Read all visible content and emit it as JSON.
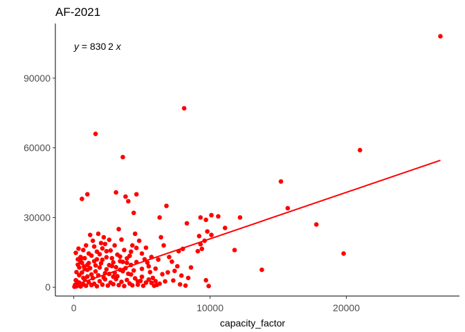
{
  "chart_data": {
    "type": "scatter",
    "title": "AF-2021",
    "xlabel": "capacity_factor",
    "ylabel": "",
    "xlim": [
      -1350,
      28300
    ],
    "ylim": [
      -3800,
      113500
    ],
    "x_ticks": [
      0,
      10000,
      20000
    ],
    "x_tick_labels": [
      "0",
      "10000",
      "20000"
    ],
    "y_ticks": [
      0,
      30000,
      60000,
      90000
    ],
    "y_tick_labels": [
      "0",
      "30000",
      "60000",
      "90000"
    ],
    "annotation": {
      "equation_prefix": "y",
      "equation_rest": " = 830 2 ",
      "equation_var": "x"
    },
    "fit_line": {
      "intercept": 830,
      "slope": 2,
      "x_start": 0,
      "x_end": 26900
    },
    "point_color": "#ff0000",
    "line_color": "#ff0000",
    "grid": false,
    "points": [
      [
        26900,
        108000
      ],
      [
        8100,
        77000
      ],
      [
        1600,
        66000
      ],
      [
        21000,
        59000
      ],
      [
        3600,
        56000
      ],
      [
        15200,
        45500
      ],
      [
        3100,
        40800
      ],
      [
        1000,
        40000
      ],
      [
        4600,
        40000
      ],
      [
        3800,
        39000
      ],
      [
        600,
        38000
      ],
      [
        4000,
        37000
      ],
      [
        6800,
        35000
      ],
      [
        15700,
        34000
      ],
      [
        4400,
        32000
      ],
      [
        10100,
        31000
      ],
      [
        10600,
        30500
      ],
      [
        9300,
        30000
      ],
      [
        9700,
        29000
      ],
      [
        6300,
        30000
      ],
      [
        11100,
        25500
      ],
      [
        12200,
        30000
      ],
      [
        8300,
        27500
      ],
      [
        17800,
        27000
      ],
      [
        9800,
        24000
      ],
      [
        10100,
        22500
      ],
      [
        9200,
        22000
      ],
      [
        9600,
        20000
      ],
      [
        9300,
        18500
      ],
      [
        9400,
        16500
      ],
      [
        9100,
        15500
      ],
      [
        11800,
        16000
      ],
      [
        19800,
        14500
      ],
      [
        13800,
        7500
      ],
      [
        9700,
        3000
      ],
      [
        9900,
        500
      ],
      [
        8600,
        8500
      ],
      [
        8400,
        4000
      ],
      [
        7600,
        9000
      ],
      [
        7200,
        11000
      ],
      [
        7000,
        13000
      ],
      [
        6600,
        18000
      ],
      [
        6400,
        21500
      ],
      [
        7400,
        7000
      ],
      [
        7900,
        5000
      ],
      [
        7700,
        15500
      ],
      [
        8000,
        16500
      ],
      [
        6300,
        1500
      ],
      [
        6700,
        2500
      ],
      [
        5800,
        4000
      ],
      [
        5500,
        9000
      ],
      [
        5200,
        12000
      ],
      [
        5000,
        14500
      ],
      [
        5300,
        17000
      ],
      [
        5600,
        6500
      ],
      [
        4800,
        20000
      ],
      [
        4500,
        23000
      ],
      [
        4300,
        18000
      ],
      [
        4100,
        13500
      ],
      [
        3900,
        10500
      ],
      [
        3700,
        16000
      ],
      [
        3500,
        20500
      ],
      [
        3300,
        25000
      ],
      [
        3200,
        14000
      ],
      [
        3000,
        18000
      ],
      [
        2800,
        12500
      ],
      [
        2600,
        9500
      ],
      [
        2400,
        15500
      ],
      [
        2200,
        21500
      ],
      [
        2000,
        19000
      ],
      [
        1800,
        23000
      ],
      [
        1700,
        12000
      ],
      [
        1500,
        17500
      ],
      [
        1400,
        20000
      ],
      [
        1200,
        22500
      ],
      [
        1100,
        14500
      ],
      [
        900,
        18000
      ],
      [
        800,
        12500
      ],
      [
        700,
        16000
      ],
      [
        600,
        10500
      ],
      [
        500,
        13000
      ],
      [
        400,
        8500
      ],
      [
        300,
        12000
      ],
      [
        200,
        6500
      ],
      [
        150,
        3000
      ],
      [
        5900,
        600
      ],
      [
        6100,
        1000
      ],
      [
        4700,
        2500
      ],
      [
        5000,
        4500
      ],
      [
        4200,
        5500
      ],
      [
        3400,
        7500
      ],
      [
        2900,
        4500
      ],
      [
        2300,
        6000
      ],
      [
        1900,
        8500
      ],
      [
        1300,
        5500
      ],
      [
        1000,
        7500
      ],
      [
        700,
        4000
      ],
      [
        400,
        2000
      ],
      [
        100,
        1000
      ],
      [
        50,
        200
      ],
      [
        200,
        400
      ],
      [
        300,
        800
      ],
      [
        500,
        300
      ],
      [
        700,
        1200
      ],
      [
        900,
        600
      ],
      [
        1100,
        2100
      ],
      [
        1300,
        900
      ],
      [
        1500,
        1500
      ],
      [
        1700,
        400
      ],
      [
        1900,
        2600
      ],
      [
        2100,
        1100
      ],
      [
        2300,
        3400
      ],
      [
        2500,
        700
      ],
      [
        2700,
        2000
      ],
      [
        2900,
        1300
      ],
      [
        3100,
        3500
      ],
      [
        3300,
        900
      ],
      [
        3500,
        2300
      ],
      [
        3700,
        500
      ],
      [
        3900,
        3100
      ],
      [
        4100,
        1600
      ],
      [
        4300,
        800
      ],
      [
        4500,
        3800
      ],
      [
        4700,
        1100
      ],
      [
        4900,
        2700
      ],
      [
        5100,
        600
      ],
      [
        5300,
        2000
      ],
      [
        5500,
        3300
      ],
      [
        200,
        2700
      ],
      [
        400,
        5200
      ],
      [
        600,
        6300
      ],
      [
        800,
        3300
      ],
      [
        1000,
        4600
      ],
      [
        1200,
        8200
      ],
      [
        1400,
        3900
      ],
      [
        1600,
        6800
      ],
      [
        1800,
        5100
      ],
      [
        2000,
        10300
      ],
      [
        2200,
        4100
      ],
      [
        2400,
        7700
      ],
      [
        2600,
        5700
      ],
      [
        2800,
        9100
      ],
      [
        3000,
        6200
      ],
      [
        3200,
        4700
      ],
      [
        3400,
        11200
      ],
      [
        3600,
        6900
      ],
      [
        3800,
        8200
      ],
      [
        4000,
        5800
      ],
      [
        4200,
        9600
      ],
      [
        4400,
        7200
      ],
      [
        4600,
        10800
      ],
      [
        300,
        9700
      ],
      [
        500,
        11100
      ],
      [
        800,
        7800
      ],
      [
        1100,
        10400
      ],
      [
        1300,
        13600
      ],
      [
        1600,
        9400
      ],
      [
        1900,
        14200
      ],
      [
        2100,
        11800
      ],
      [
        2400,
        12900
      ],
      [
        2700,
        15800
      ],
      [
        2900,
        10700
      ],
      [
        3100,
        8600
      ],
      [
        3400,
        13200
      ],
      [
        3600,
        10900
      ],
      [
        3900,
        12400
      ],
      [
        4200,
        15300
      ],
      [
        4600,
        16900
      ],
      [
        5000,
        7900
      ],
      [
        5400,
        10600
      ],
      [
        5700,
        13000
      ],
      [
        6000,
        8000
      ],
      [
        6200,
        11900
      ],
      [
        6500,
        5600
      ],
      [
        6900,
        6400
      ],
      [
        7300,
        2900
      ],
      [
        7800,
        1200
      ],
      [
        8200,
        700
      ],
      [
        6000,
        2600
      ],
      [
        5700,
        1900
      ],
      [
        150,
        14800
      ],
      [
        350,
        16600
      ],
      [
        550,
        12500
      ],
      [
        1500,
        11200
      ],
      [
        2100,
        16700
      ],
      [
        2600,
        20400
      ],
      [
        2300,
        18600
      ],
      [
        1700,
        15300
      ],
      [
        1000,
        9600
      ],
      [
        750,
        8900
      ]
    ]
  }
}
